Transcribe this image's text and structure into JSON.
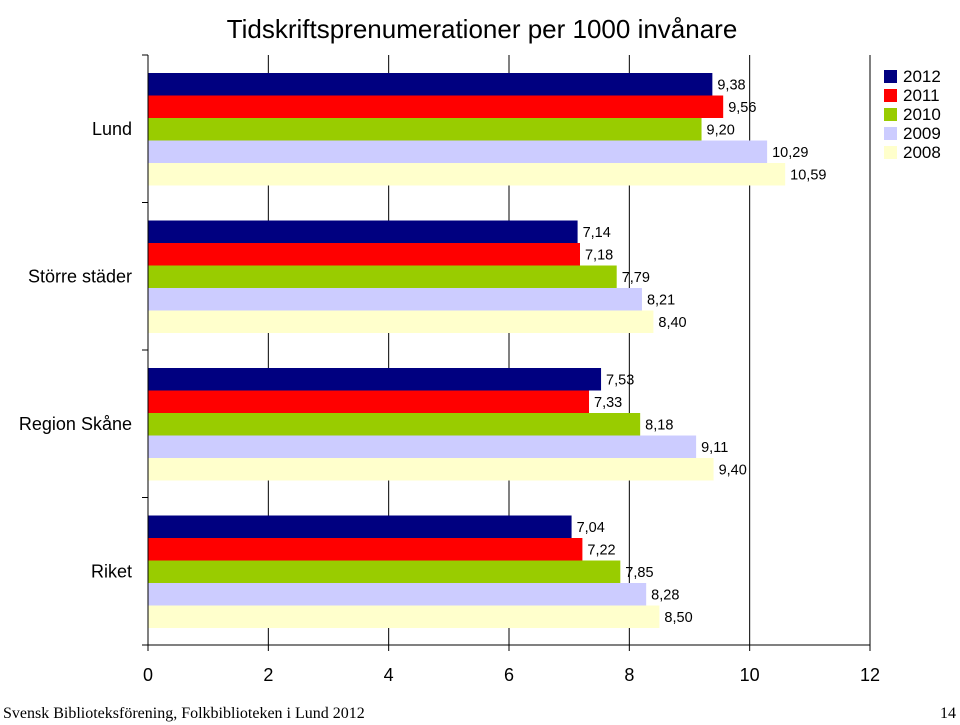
{
  "chart_data": {
    "type": "bar",
    "orientation": "horizontal",
    "title": "Tidskriftsprenumerationer per 1000 invånare",
    "categories": [
      "Lund",
      "Större städer",
      "Region Skåne",
      "Riket"
    ],
    "series": [
      {
        "name": "2012",
        "color": "#000080",
        "values": [
          9.38,
          7.14,
          7.53,
          7.04
        ],
        "labels": [
          "9,38",
          "7,14",
          "7,53",
          "7,04"
        ]
      },
      {
        "name": "2011",
        "color": "#ff0000",
        "values": [
          9.56,
          7.18,
          7.33,
          7.22
        ],
        "labels": [
          "9,56",
          "7,18",
          "7,33",
          "7,22"
        ]
      },
      {
        "name": "2010",
        "color": "#99cc00",
        "values": [
          9.2,
          7.79,
          8.18,
          7.85
        ],
        "labels": [
          "9,20",
          "7,79",
          "8,18",
          "7,85"
        ]
      },
      {
        "name": "2009",
        "color": "#ccccff",
        "values": [
          10.29,
          8.21,
          9.11,
          8.28
        ],
        "labels": [
          "10,29",
          "8,21",
          "9,11",
          "8,28"
        ]
      },
      {
        "name": "2008",
        "color": "#ffffcc",
        "values": [
          10.59,
          8.4,
          9.4,
          8.5
        ],
        "labels": [
          "10,59",
          "8,40",
          "9,40",
          "8,50"
        ]
      }
    ],
    "x_ticks": [
      "0",
      "2",
      "4",
      "6",
      "8",
      "10",
      "12"
    ],
    "xlim": [
      0,
      12
    ],
    "grid": "vertical",
    "legend_position": "top-right"
  },
  "footer": {
    "left": "Svensk Biblioteksförening, Folkbiblioteken i Lund 2012",
    "right": "14"
  }
}
